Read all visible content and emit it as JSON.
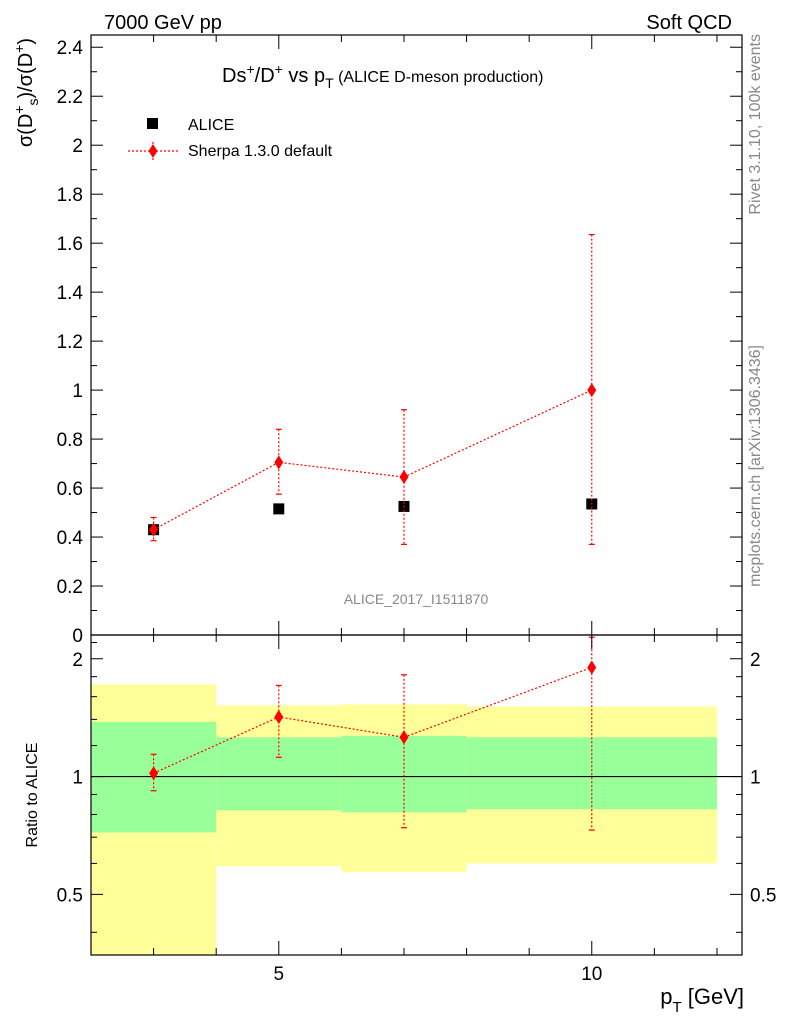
{
  "header": {
    "left": "7000 GeV pp",
    "right": "Soft QCD"
  },
  "side_labels": {
    "rivet": "Rivet 3.1.10,  100k events",
    "mcplots": "mcplots.cern.ch [arXiv:1306.3436]"
  },
  "analysis_id": "ALICE_2017_I1511870",
  "chart_data": [
    {
      "type": "scatter",
      "title": {
        "main": "Ds",
        "main_sup": "+",
        "mid": "/D",
        "mid_sup": "+",
        "vs": " vs p",
        "vs_sub": "T",
        "paren": " (ALICE D-meson production)"
      },
      "ylabel": "σ(D_s^+)/σ(D^+)",
      "ylabel_parts": {
        "a": "σ(D",
        "a_sup": "+",
        "a_sub": "s",
        "b": ")/σ(D",
        "b_sup": "+",
        "c": ")"
      },
      "xlim": [
        2,
        12.4
      ],
      "ylim": [
        0,
        2.45
      ],
      "yticks": [
        0,
        0.2,
        0.4,
        0.6,
        0.8,
        1,
        1.2,
        1.4,
        1.6,
        1.8,
        2,
        2.2,
        2.4
      ],
      "ytick_labels": [
        "0",
        "0.2",
        "0.4",
        "0.6",
        "0.8",
        "1",
        "1.2",
        "1.4",
        "1.6",
        "1.8",
        "2",
        "2.2",
        "2.4"
      ],
      "legend_position": "top-left",
      "series": [
        {
          "name": "ALICE",
          "color": "#000000",
          "marker": "square",
          "x": [
            3,
            5,
            7,
            10
          ],
          "y": [
            0.43,
            0.515,
            0.525,
            0.535
          ]
        },
        {
          "name": "Sherpa 1.3.0 default",
          "color": "#ff0000",
          "marker": "diamond",
          "line": "dotted",
          "x": [
            3,
            5,
            7,
            10
          ],
          "y": [
            0.43,
            0.705,
            0.645,
            1.0
          ],
          "yerr_low": [
            0.385,
            0.575,
            0.37,
            0.37
          ],
          "yerr_high": [
            0.48,
            0.84,
            0.92,
            1.635
          ]
        }
      ]
    },
    {
      "type": "scatter",
      "ylabel": "Ratio to ALICE",
      "xlabel": "p_T [GeV]",
      "xlabel_parts": {
        "a": "p",
        "a_sub": "T",
        "b": " [GeV]"
      },
      "xlim": [
        2,
        12.4
      ],
      "ylim": [
        0.35,
        2.3
      ],
      "log_y": true,
      "yticks": [
        0.5,
        1,
        2
      ],
      "ytick_labels": [
        "0.5",
        "1",
        "2"
      ],
      "xticks": [
        5,
        10
      ],
      "xtick_labels": [
        "5",
        "10"
      ],
      "bands": {
        "yellow_color": "#ffff99",
        "green_color": "#99ff99",
        "bins": [
          {
            "x0": 2.0,
            "x1": 4.0,
            "y_low": 0.35,
            "y_high": 1.72,
            "g_low": 0.72,
            "g_high": 1.38
          },
          {
            "x0": 4.0,
            "x1": 6.0,
            "y_low": 0.59,
            "y_high": 1.52,
            "g_low": 0.82,
            "g_high": 1.26
          },
          {
            "x0": 6.0,
            "x1": 8.0,
            "y_low": 0.57,
            "y_high": 1.53,
            "g_low": 0.81,
            "g_high": 1.27
          },
          {
            "x0": 8.0,
            "x1": 12.0,
            "y_low": 0.6,
            "y_high": 1.51,
            "g_low": 0.825,
            "g_high": 1.26
          }
        ]
      },
      "series": [
        {
          "name": "Sherpa 1.3.0 default",
          "color": "#ff0000",
          "x": [
            3,
            5,
            7,
            10
          ],
          "y": [
            1.02,
            1.42,
            1.26,
            1.9
          ],
          "yerr_low": [
            0.92,
            1.12,
            0.74,
            0.73
          ],
          "yerr_high": [
            1.14,
            1.71,
            1.82,
            2.27
          ]
        }
      ]
    }
  ]
}
